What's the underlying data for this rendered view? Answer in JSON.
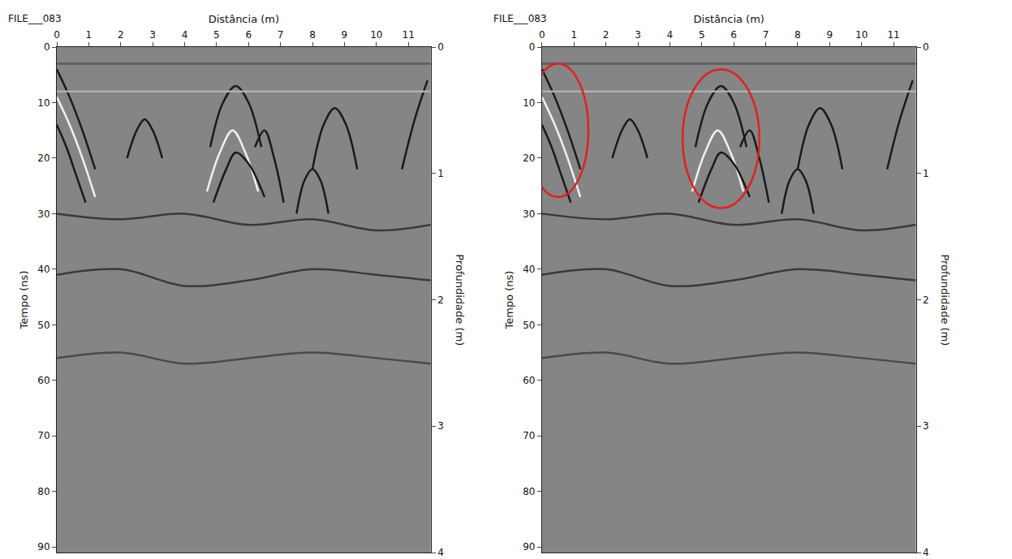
{
  "chart_data": [
    {
      "type": "line",
      "title": "FILE___083",
      "x_label": "Distância (m)",
      "y_label": "Tempo (ns)",
      "y2_label": "Profundidade (m)",
      "xlim": [
        0,
        11.7
      ],
      "xticks": [
        0,
        1,
        2,
        3,
        4,
        5,
        6,
        7,
        8,
        9,
        10,
        11
      ],
      "ylim": [
        0,
        91
      ],
      "yticks": [
        0,
        10,
        20,
        30,
        40,
        50,
        60,
        70,
        80,
        90
      ],
      "y2lim": [
        0,
        4
      ],
      "y2ticks": [
        0,
        1,
        2,
        3,
        4
      ],
      "grid": false,
      "color": "#858585",
      "series": [
        {
          "x": [
            0,
            0.4,
            0.8,
            1.2
          ],
          "y": [
            4,
            9,
            15,
            22
          ],
          "color": "#1a1a1a"
        },
        {
          "x": [
            0,
            0.4,
            0.8,
            1.2
          ],
          "y": [
            9,
            14,
            20,
            27
          ],
          "color": "#f0f0f0"
        },
        {
          "x": [
            0,
            0.3,
            0.6,
            0.9
          ],
          "y": [
            14,
            18,
            23,
            28
          ],
          "color": "#1a1a1a"
        },
        {
          "x": [
            2.2,
            2.5,
            2.75,
            3.0,
            3.3
          ],
          "y": [
            20,
            15,
            13,
            15,
            20
          ],
          "color": "#1a1a1a"
        },
        {
          "x": [
            4.8,
            5.2,
            5.6,
            6.0,
            6.4
          ],
          "y": [
            18,
            10,
            7,
            10,
            18
          ],
          "color": "#1a1a1a"
        },
        {
          "x": [
            4.7,
            5.1,
            5.5,
            5.9,
            6.3
          ],
          "y": [
            26,
            19,
            15,
            19,
            26
          ],
          "color": "#f0f0f0"
        },
        {
          "x": [
            4.9,
            5.3,
            5.6,
            6.0,
            6.5
          ],
          "y": [
            28,
            22,
            19,
            21,
            27
          ],
          "color": "#1a1a1a"
        },
        {
          "x": [
            6.2,
            6.5,
            6.8,
            7.1
          ],
          "y": [
            18,
            15,
            20,
            28
          ],
          "color": "#1a1a1a"
        },
        {
          "x": [
            8.0,
            8.35,
            8.7,
            9.05,
            9.4
          ],
          "y": [
            22,
            14,
            11,
            14,
            22
          ],
          "color": "#1a1a1a"
        },
        {
          "x": [
            7.5,
            7.75,
            8.0,
            8.25,
            8.5
          ],
          "y": [
            30,
            24,
            22,
            24,
            30
          ],
          "color": "#1a1a1a"
        },
        {
          "x": [
            10.8,
            11.2,
            11.6
          ],
          "y": [
            22,
            13,
            6
          ],
          "color": "#1a1a1a"
        },
        {
          "x": [
            0,
            11.7
          ],
          "y": [
            3,
            3
          ],
          "color": "#5a5a5a"
        },
        {
          "x": [
            0,
            11.7
          ],
          "y": [
            8,
            8
          ],
          "color": "#b0b0b0"
        },
        {
          "x": [
            0,
            2,
            4,
            6,
            8,
            10,
            11.7
          ],
          "y": [
            30,
            31,
            30,
            32,
            31,
            33,
            32
          ],
          "color": "#3a3a3a"
        },
        {
          "x": [
            0,
            2,
            4,
            6,
            8,
            10,
            11.7
          ],
          "y": [
            41,
            40,
            43,
            42,
            40,
            41,
            42
          ],
          "color": "#3a3a3a"
        },
        {
          "x": [
            0,
            2,
            4,
            6,
            8,
            10,
            11.7
          ],
          "y": [
            56,
            55,
            57,
            56,
            55,
            56,
            57
          ],
          "color": "#4a4a4a"
        }
      ]
    },
    {
      "type": "line",
      "title": "FILE___083",
      "x_label": "Distância (m)",
      "y_label": "Tempo (ns)",
      "y2_label": "Profundidade (m)",
      "xlim": [
        0,
        11.7
      ],
      "xticks": [
        0,
        1,
        2,
        3,
        4,
        5,
        6,
        7,
        8,
        9,
        10,
        11
      ],
      "ylim": [
        0,
        91
      ],
      "yticks": [
        0,
        10,
        20,
        30,
        40,
        50,
        60,
        70,
        80,
        90
      ],
      "y2lim": [
        0,
        4
      ],
      "y2ticks": [
        0,
        1,
        2,
        3,
        4
      ],
      "grid": false,
      "color": "#858585",
      "series": [
        {
          "x": [
            0,
            0.4,
            0.8,
            1.2
          ],
          "y": [
            4,
            9,
            15,
            22
          ],
          "color": "#1a1a1a"
        },
        {
          "x": [
            0,
            0.4,
            0.8,
            1.2
          ],
          "y": [
            9,
            14,
            20,
            27
          ],
          "color": "#f0f0f0"
        },
        {
          "x": [
            0,
            0.3,
            0.6,
            0.9
          ],
          "y": [
            14,
            18,
            23,
            28
          ],
          "color": "#1a1a1a"
        },
        {
          "x": [
            2.2,
            2.5,
            2.75,
            3.0,
            3.3
          ],
          "y": [
            20,
            15,
            13,
            15,
            20
          ],
          "color": "#1a1a1a"
        },
        {
          "x": [
            4.8,
            5.2,
            5.6,
            6.0,
            6.4
          ],
          "y": [
            18,
            10,
            7,
            10,
            18
          ],
          "color": "#1a1a1a"
        },
        {
          "x": [
            4.7,
            5.1,
            5.5,
            5.9,
            6.3
          ],
          "y": [
            26,
            19,
            15,
            19,
            26
          ],
          "color": "#f0f0f0"
        },
        {
          "x": [
            4.9,
            5.3,
            5.6,
            6.0,
            6.5
          ],
          "y": [
            28,
            22,
            19,
            21,
            27
          ],
          "color": "#1a1a1a"
        },
        {
          "x": [
            6.2,
            6.5,
            6.8,
            7.1
          ],
          "y": [
            18,
            15,
            20,
            28
          ],
          "color": "#1a1a1a"
        },
        {
          "x": [
            8.0,
            8.35,
            8.7,
            9.05,
            9.4
          ],
          "y": [
            22,
            14,
            11,
            14,
            22
          ],
          "color": "#1a1a1a"
        },
        {
          "x": [
            7.5,
            7.75,
            8.0,
            8.25,
            8.5
          ],
          "y": [
            30,
            24,
            22,
            24,
            30
          ],
          "color": "#1a1a1a"
        },
        {
          "x": [
            10.8,
            11.2,
            11.6
          ],
          "y": [
            22,
            13,
            6
          ],
          "color": "#1a1a1a"
        },
        {
          "x": [
            0,
            11.7
          ],
          "y": [
            3,
            3
          ],
          "color": "#5a5a5a"
        },
        {
          "x": [
            0,
            11.7
          ],
          "y": [
            8,
            8
          ],
          "color": "#b0b0b0"
        },
        {
          "x": [
            0,
            2,
            4,
            6,
            8,
            10,
            11.7
          ],
          "y": [
            30,
            31,
            30,
            32,
            31,
            33,
            32
          ],
          "color": "#3a3a3a"
        },
        {
          "x": [
            0,
            2,
            4,
            6,
            8,
            10,
            11.7
          ],
          "y": [
            41,
            40,
            43,
            42,
            40,
            41,
            42
          ],
          "color": "#3a3a3a"
        },
        {
          "x": [
            0,
            2,
            4,
            6,
            8,
            10,
            11.7
          ],
          "y": [
            56,
            55,
            57,
            56,
            55,
            56,
            57
          ],
          "color": "#4a4a4a"
        }
      ],
      "highlights": [
        {
          "x": [
            -0.45,
            1.45
          ],
          "y": [
            3,
            27
          ],
          "color": "#e02020"
        },
        {
          "x": [
            4.4,
            6.8
          ],
          "y": [
            4,
            29
          ],
          "color": "#e02020"
        }
      ]
    }
  ]
}
